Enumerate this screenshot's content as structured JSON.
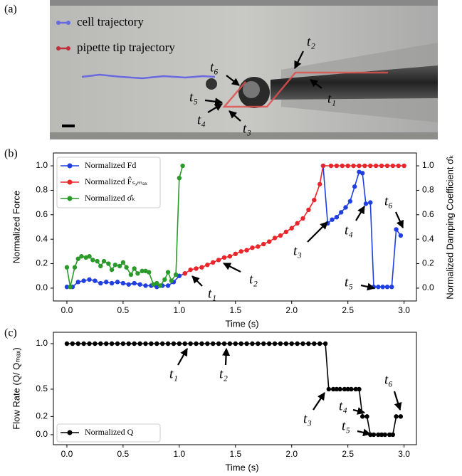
{
  "panel_a": {
    "label": "(a)",
    "legend": [
      "cell trajectory",
      "pipette tip trajectory"
    ],
    "annotations": [
      "t₁",
      "t₂",
      "t₃",
      "t₄",
      "t₅",
      "t₆"
    ]
  },
  "chart_data": [
    {
      "type": "line",
      "panel_label": "(b)",
      "xlabel": "Time (s)",
      "ylabel": "Normalized Force",
      "y2label": "Normalized Damping Coefficient σ̂ₖ",
      "xlim": [
        -0.12,
        3.11
      ],
      "ylim": [
        -0.105,
        1.105
      ],
      "y2lim": [
        -0.105,
        1.105
      ],
      "xticks": [
        {
          "value": 0,
          "label": "0.0"
        },
        0.5,
        {
          "value": 1,
          "label": "1.0"
        },
        1.5,
        {
          "value": 2,
          "label": "2.0"
        },
        2.5,
        {
          "value": 3,
          "label": "3.0"
        }
      ],
      "yticks": [
        {
          "value": 0,
          "label": "0.0"
        },
        0.2,
        0.4,
        0.6,
        0.8,
        {
          "value": 1,
          "label": "1.0"
        }
      ],
      "y2ticks": [
        {
          "value": 0,
          "label": "0.0"
        },
        0.2,
        0.4,
        0.6,
        0.8,
        {
          "value": 1,
          "label": "1.0"
        }
      ],
      "legend": "upper left",
      "series": [
        {
          "name": "Normalized Fd",
          "color": "#1f3fe0",
          "x": [
            0,
            0.05,
            0.1,
            0.15,
            0.2,
            0.25,
            0.3,
            0.35,
            0.4,
            0.45,
            0.5,
            0.55,
            0.6,
            0.65,
            0.7,
            0.75,
            0.8,
            0.85,
            0.9,
            0.95,
            1.0,
            1.05,
            1.6,
            2.28,
            2.32,
            2.36,
            2.4,
            2.44,
            2.48,
            2.52,
            2.56,
            2.6,
            2.63,
            2.66,
            2.7,
            2.73,
            2.77,
            2.81,
            2.85,
            2.89,
            2.93,
            2.97
          ],
          "values": [
            0.01,
            0.01,
            0.05,
            0.06,
            0.07,
            0.06,
            0.04,
            0.05,
            0.04,
            0.05,
            0.04,
            0.03,
            0.04,
            0.03,
            0.02,
            0.02,
            0.01,
            0.02,
            0.02,
            0.05,
            0.1,
            0.12,
            null,
            1.0,
            0.53,
            0.56,
            0.58,
            0.62,
            0.66,
            0.71,
            0.83,
            0.95,
            0.94,
            0.69,
            0.7,
            0.01,
            0.01,
            0.01,
            0.01,
            0.01,
            0.48,
            0.43
          ]
        },
        {
          "name": "Normalized F̂ₛ,ₘₐₓ",
          "color": "#e8262b",
          "x": [
            1.05,
            1.1,
            1.15,
            1.2,
            1.25,
            1.3,
            1.35,
            1.4,
            1.45,
            1.5,
            1.55,
            1.6,
            1.65,
            1.7,
            1.75,
            1.8,
            1.85,
            1.9,
            1.95,
            2.0,
            2.05,
            2.1,
            2.15,
            2.2,
            2.25,
            2.28,
            2.35,
            2.4,
            2.45,
            2.5,
            2.55,
            2.6,
            2.65,
            2.7,
            2.75,
            2.8,
            2.85,
            2.9,
            2.95,
            3.0
          ],
          "values": [
            0.12,
            0.15,
            0.16,
            0.17,
            0.19,
            0.21,
            0.23,
            0.25,
            0.26,
            0.28,
            0.3,
            0.31,
            0.33,
            0.34,
            0.36,
            0.38,
            0.41,
            0.43,
            0.46,
            0.49,
            0.53,
            0.57,
            0.64,
            0.72,
            0.85,
            1.0,
            1.0,
            1.0,
            1.0,
            1.0,
            1.0,
            1.0,
            1.0,
            1.0,
            1.0,
            1.0,
            1.0,
            1.0,
            1.0,
            1.0
          ]
        },
        {
          "name": "Normalized σ̂ₖ",
          "color": "#2a9a2a",
          "axis": "y2",
          "x": [
            0,
            0.03,
            0.07,
            0.1,
            0.13,
            0.17,
            0.2,
            0.23,
            0.27,
            0.3,
            0.33,
            0.37,
            0.4,
            0.43,
            0.47,
            0.5,
            0.53,
            0.57,
            0.6,
            0.63,
            0.67,
            0.7,
            0.73,
            0.77,
            0.8,
            0.83,
            0.87,
            0.9,
            0.93,
            0.97,
            1.0,
            1.03
          ],
          "values": [
            0.17,
            0.01,
            0.17,
            0.24,
            0.26,
            0.25,
            0.26,
            0.23,
            0.22,
            0.18,
            0.22,
            0.2,
            0.15,
            0.19,
            0.18,
            0.21,
            0.17,
            0.11,
            0.16,
            0.12,
            0.14,
            0.14,
            0.13,
            0.03,
            0.04,
            0.02,
            0.07,
            0.13,
            0.06,
            0.11,
            0.9,
            1.0
          ]
        }
      ],
      "annotations": [
        "t₁",
        "t₂",
        "t₃",
        "t₄",
        "t₅",
        "t₆"
      ]
    },
    {
      "type": "line",
      "panel_label": "(c)",
      "xlabel": "Time (s)",
      "ylabel": "Flow Rate (Q/ Qₘₐₓ)",
      "xlim": [
        -0.12,
        3.11
      ],
      "ylim": [
        -0.11,
        1.125
      ],
      "xticks": [
        {
          "value": 0,
          "label": "0.0"
        },
        0.5,
        {
          "value": 1,
          "label": "1.0"
        },
        1.5,
        {
          "value": 2,
          "label": "2.0"
        },
        2.5,
        {
          "value": 3,
          "label": "3.0"
        }
      ],
      "yticks": [
        {
          "value": 0,
          "label": "0.0"
        },
        0.2,
        0.5,
        {
          "value": 1,
          "label": "1.0"
        }
      ],
      "legend": "lower left",
      "series": [
        {
          "name": "Normalized Q",
          "color": "#000000",
          "x": [
            0,
            0.05,
            0.1,
            0.15,
            0.2,
            0.25,
            0.3,
            0.35,
            0.4,
            0.45,
            0.5,
            0.55,
            0.6,
            0.65,
            0.7,
            0.75,
            0.8,
            0.85,
            0.9,
            0.95,
            1.0,
            1.05,
            1.1,
            1.15,
            1.2,
            1.25,
            1.3,
            1.35,
            1.4,
            1.45,
            1.5,
            1.55,
            1.6,
            1.65,
            1.7,
            1.75,
            1.8,
            1.85,
            1.9,
            1.95,
            2.0,
            2.05,
            2.1,
            2.15,
            2.2,
            2.25,
            2.3,
            2.33,
            2.37,
            2.4,
            2.43,
            2.47,
            2.5,
            2.53,
            2.57,
            2.6,
            2.63,
            2.67,
            2.7,
            2.73,
            2.77,
            2.8,
            2.83,
            2.87,
            2.9,
            2.93,
            2.97
          ],
          "values": [
            1,
            1,
            1,
            1,
            1,
            1,
            1,
            1,
            1,
            1,
            1,
            1,
            1,
            1,
            1,
            1,
            1,
            1,
            1,
            1,
            1,
            1,
            1,
            1,
            1,
            1,
            1,
            1,
            1,
            1,
            1,
            1,
            1,
            1,
            1,
            1,
            1,
            1,
            1,
            1,
            1,
            1,
            1,
            1,
            1,
            1,
            1,
            0.5,
            0.5,
            0.5,
            0.5,
            0.5,
            0.5,
            0.5,
            0.5,
            0.5,
            0.2,
            0.2,
            0,
            0,
            0,
            0,
            0,
            0,
            0,
            0.2,
            0.2
          ]
        }
      ],
      "annotations": [
        "t₁",
        "t₂",
        "t₃",
        "t₄",
        "t₅",
        "t₆"
      ]
    }
  ]
}
